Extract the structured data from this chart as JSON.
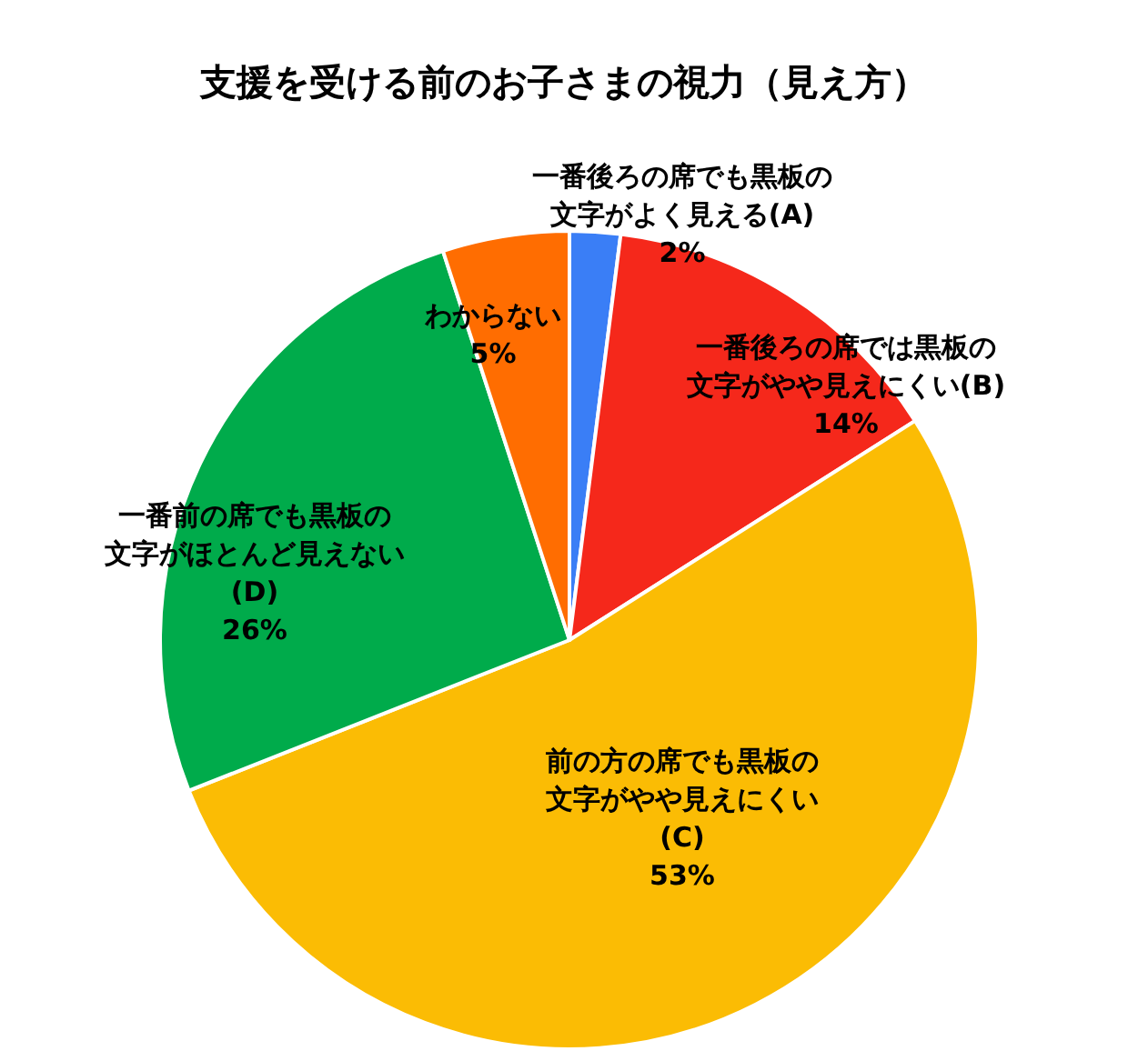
{
  "chart_data": {
    "type": "pie",
    "title": "支援を受ける前のお子さまの視力（見え方）",
    "categories": [
      "一番後ろの席でも黒板の文字がよく見える(A)",
      "一番後ろの席では黒板の文字がやや見えにくい(B)",
      "前の方の席でも黒板の文字がやや見えにくい(C)",
      "一番前の席でも黒板の文字がほとんど見えない(D)",
      "わからない"
    ],
    "values": [
      2,
      14,
      53,
      26,
      5
    ],
    "value_labels": [
      "2%",
      "14%",
      "53%",
      "26%",
      "5%"
    ],
    "colors": [
      "#3a7ef6",
      "#f5281b",
      "#fbbc04",
      "#00ab4b",
      "#ff6d01"
    ]
  }
}
